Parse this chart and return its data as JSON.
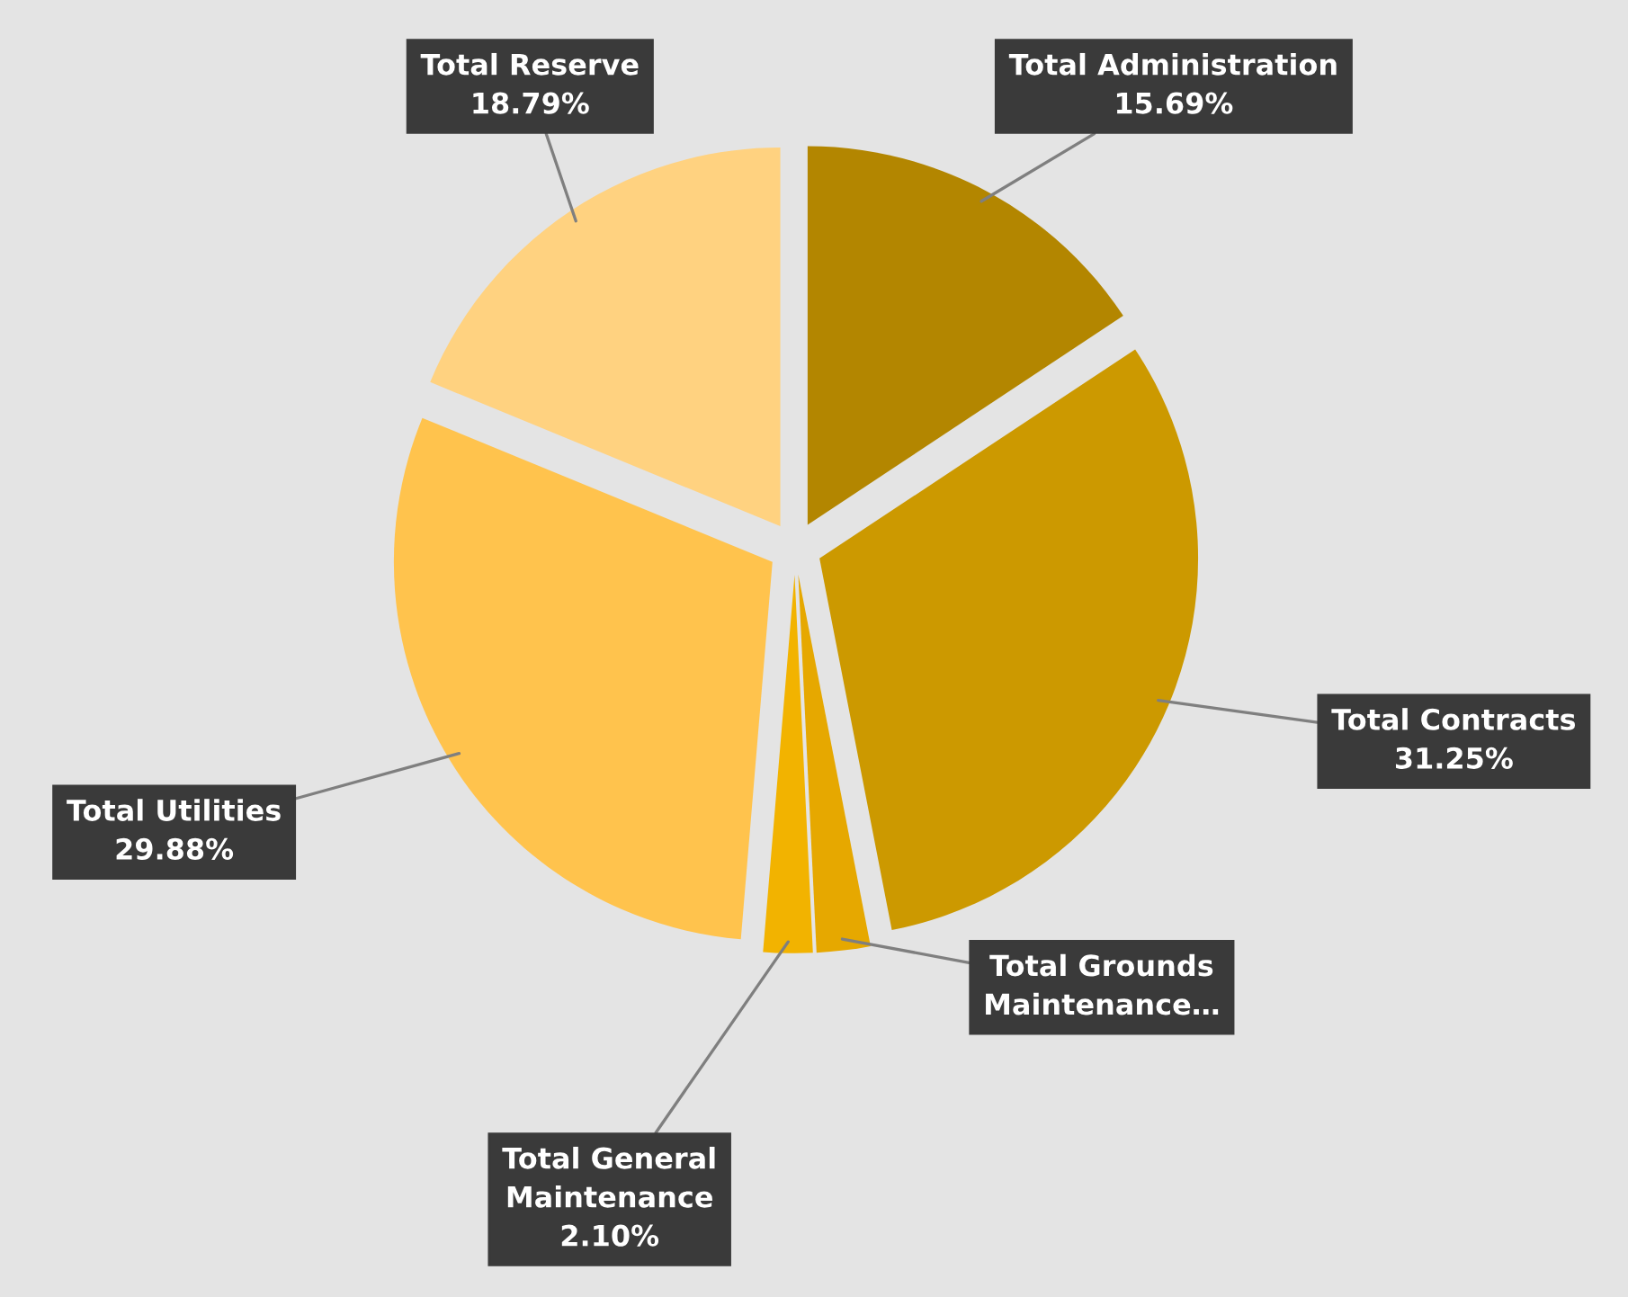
{
  "chart_data": {
    "type": "pie",
    "categories": [
      "Total Administration",
      "Total Contracts",
      "Total Grounds\nMaintenance…",
      "Total General\nMaintenance",
      "Total Utilities",
      "Total Reserve"
    ],
    "values": [
      15.69,
      31.25,
      2.29,
      2.1,
      29.88,
      18.79
    ],
    "value_labels": [
      "15.69%",
      "31.25%",
      null,
      "2.10%",
      "29.88%",
      "18.79%"
    ],
    "colors": [
      "#b38600",
      "#cc9900",
      "#e6a800",
      "#f2b300",
      "#ffc34d",
      "#ffd280"
    ],
    "legend": false
  }
}
